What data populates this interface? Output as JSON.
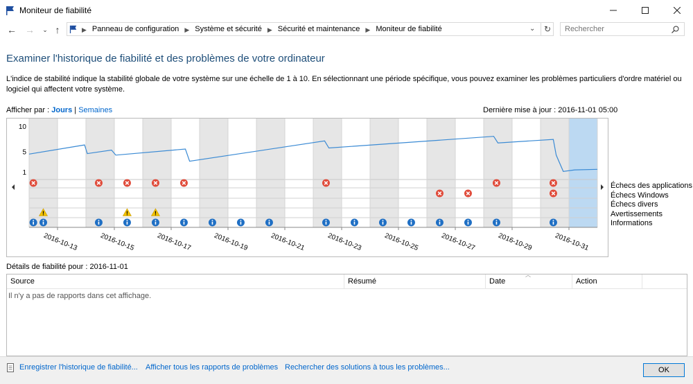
{
  "window": {
    "title": "Moniteur de fiabilité"
  },
  "address": {
    "breadcrumbs": [
      "Panneau de configuration",
      "Système et sécurité",
      "Sécurité et maintenance",
      "Moniteur de fiabilité"
    ]
  },
  "search": {
    "placeholder": "Rechercher"
  },
  "page": {
    "heading": "Examiner l'historique de fiabilité et des problèmes de votre ordinateur",
    "intro": "L'indice de stabilité indique la stabilité globale de votre système sur une échelle de 1 à 10. En sélectionnant une période spécifique, vous pouvez examiner les problèmes particuliers d'ordre matériel ou logiciel qui affectent votre système."
  },
  "viewby": {
    "label": "Afficher par :",
    "days": "Jours",
    "sep": "|",
    "weeks": "Semaines"
  },
  "last_update": "Dernière mise à jour : 2016-11-01 05:00",
  "chart_data": {
    "type": "line",
    "y_ticks": [
      "10",
      "5",
      "1"
    ],
    "ylim": [
      1,
      10
    ],
    "columns": 20,
    "dates": [
      "2016-10-13",
      "2016-10-15",
      "2016-10-17",
      "2016-10-19",
      "2016-10-21",
      "2016-10-23",
      "2016-10-25",
      "2016-10-27",
      "2016-10-29",
      "2016-10-31"
    ],
    "selected_column": 19,
    "stability_index": [
      {
        "c": 0,
        "v": 4.5
      },
      {
        "c": 1.95,
        "v": 6.3
      },
      {
        "c": 2.05,
        "v": 4.6
      },
      {
        "c": 2.9,
        "v": 5.3
      },
      {
        "c": 3.05,
        "v": 4.3
      },
      {
        "c": 5.5,
        "v": 5.5
      },
      {
        "c": 5.65,
        "v": 3.1
      },
      {
        "c": 10.4,
        "v": 7.1
      },
      {
        "c": 10.55,
        "v": 5.7
      },
      {
        "c": 16.35,
        "v": 8.0
      },
      {
        "c": 16.5,
        "v": 6.7
      },
      {
        "c": 18.45,
        "v": 7.4
      },
      {
        "c": 18.55,
        "v": 4.3
      },
      {
        "c": 18.8,
        "v": 1.1
      },
      {
        "c": 19.2,
        "v": 1.4
      },
      {
        "c": 20,
        "v": 1.5
      }
    ],
    "categories": [
      "Échecs des applications",
      "Échecs Windows",
      "Échecs divers",
      "Avertissements",
      "Informations"
    ],
    "events": [
      {
        "row": 0,
        "type": "error",
        "c": [
          0.15,
          2.45,
          3.45,
          4.45,
          5.45,
          10.45,
          16.45,
          18.45
        ]
      },
      {
        "row": 1,
        "type": "error",
        "c": [
          14.45,
          15.45,
          18.45
        ]
      },
      {
        "row": 3,
        "type": "warning",
        "c": [
          0.5,
          3.45,
          4.45
        ]
      },
      {
        "row": 4,
        "type": "info",
        "c": [
          0.15,
          0.5,
          2.45,
          3.45,
          4.45,
          5.45,
          6.45,
          7.45,
          8.45,
          10.45,
          11.45,
          12.45,
          13.45,
          14.45,
          15.45,
          16.45,
          18.45
        ]
      }
    ]
  },
  "details": {
    "title": "Détails de fiabilité pour : 2016-11-01",
    "columns": [
      "Source",
      "Résumé",
      "Date",
      "Action"
    ],
    "empty_message": "Il n'y a pas de rapports dans cet affichage."
  },
  "footer": {
    "save_history": "Enregistrer l'historique de fiabilité...",
    "view_reports": "Afficher tous les rapports de problèmes",
    "check_solutions": "Rechercher des solutions à tous les problèmes...",
    "ok": "OK"
  },
  "colors": {
    "accent": "#0066cc",
    "line": "#3a8ad4",
    "error": "#e04b3a",
    "warning": "#f2c200",
    "info": "#1f6fc4",
    "selected": "#bcd9f2",
    "shaded": "#e6e6e6"
  }
}
